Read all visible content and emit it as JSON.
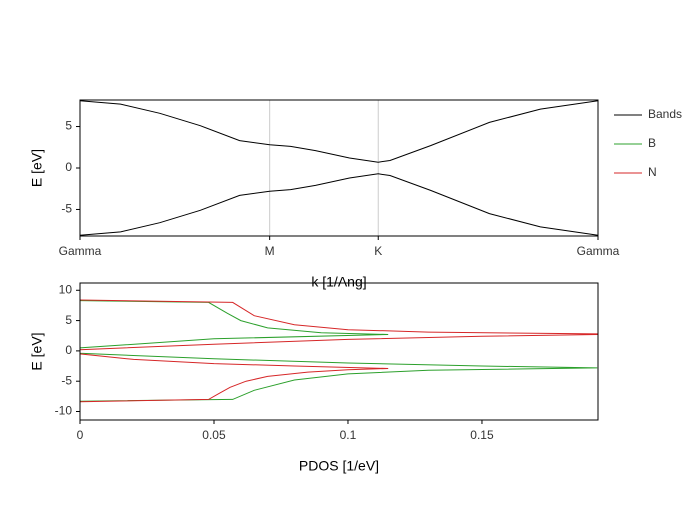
{
  "chart_data": [
    {
      "type": "line",
      "xlabel": "k [1/Ang]",
      "ylabel": "E [eV]",
      "x": [
        0,
        0.31,
        0.61,
        0.92,
        1.22,
        1.45,
        1.61,
        1.8,
        2.06,
        2.28,
        2.37,
        2.68,
        3.13,
        3.52,
        3.96
      ],
      "series": [
        {
          "name": "Bands",
          "color": "#000000",
          "values": [
            8.1,
            7.7,
            6.6,
            5.1,
            3.3,
            2.8,
            2.6,
            2.1,
            1.2,
            0.7,
            0.9,
            2.7,
            5.5,
            7.1,
            8.1
          ]
        },
        {
          "color": "#000000",
          "values": [
            -8.1,
            -7.7,
            -6.6,
            -5.1,
            -3.3,
            -2.8,
            -2.6,
            -2.1,
            -1.2,
            -0.7,
            -0.9,
            -2.7,
            -5.5,
            -7.1,
            -8.1
          ]
        }
      ],
      "xlim": [
        0,
        3.96
      ],
      "xticks": [
        {
          "value": 0,
          "label": "Gamma"
        },
        {
          "value": 1.45,
          "label": "M"
        },
        {
          "value": 2.28,
          "label": "K"
        },
        {
          "value": 3.96,
          "label": "Gamma"
        }
      ],
      "ylim": [
        -8.2,
        8.2
      ],
      "yticks": [
        -5,
        0,
        5
      ],
      "xgrid": true,
      "legend": "right"
    },
    {
      "type": "line",
      "xlabel": "PDOS [1/eV]",
      "ylabel": "E [eV]",
      "series": [
        {
          "name": "B",
          "color": "#2ca02c",
          "x": [
            0,
            0.057,
            0.065,
            0.08,
            0.1,
            0.13,
            0.193,
            0.15,
            0.1,
            0.05,
            0,
            0,
            0.05,
            0.115,
            0.09,
            0.07,
            0.06,
            0.055,
            0.048,
            0
          ],
          "values": [
            -8.3,
            -8.0,
            -6.5,
            -4.8,
            -3.8,
            -3.2,
            -2.8,
            -2.5,
            -2.0,
            -1.3,
            -0.4,
            0.5,
            2.0,
            2.7,
            3.0,
            3.8,
            5.0,
            6.2,
            8.0,
            8.3
          ]
        },
        {
          "name": "N",
          "color": "#d62728",
          "x": [
            0,
            0.048,
            0.052,
            0.056,
            0.062,
            0.07,
            0.085,
            0.1,
            0.115,
            0.08,
            0.05,
            0.02,
            0,
            0,
            0.05,
            0.1,
            0.15,
            0.193,
            0.193,
            0.13,
            0.1,
            0.08,
            0.065,
            0.057,
            0
          ],
          "values": [
            -8.4,
            -8.0,
            -7.0,
            -6.0,
            -5.0,
            -4.2,
            -3.5,
            -3.1,
            -2.9,
            -2.5,
            -2.1,
            -1.4,
            -0.5,
            0.2,
            1.1,
            1.9,
            2.4,
            2.7,
            2.8,
            3.1,
            3.5,
            4.3,
            5.8,
            8.0,
            8.4
          ]
        }
      ],
      "xlim": [
        0,
        0.1933
      ],
      "xticks": [
        0,
        0.05,
        0.1,
        0.15
      ],
      "ylim": [
        -11.4,
        11.2
      ],
      "yticks": [
        -10,
        -5,
        0,
        5,
        10
      ]
    }
  ]
}
